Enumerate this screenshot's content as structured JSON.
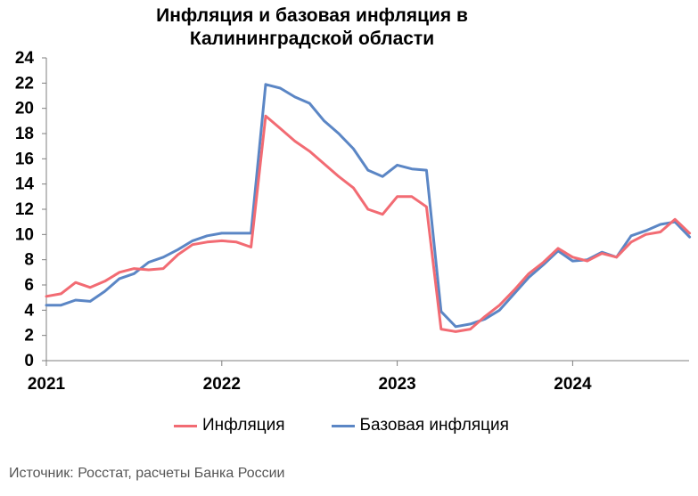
{
  "title_lines": [
    "Инфляция и базовая инфляция в",
    "Калининградской области"
  ],
  "source": "Источник: Росстат, расчеты Банка России",
  "colors": {
    "inflation": "#f26b73",
    "core": "#5b86c5"
  },
  "chart_data": {
    "type": "line",
    "title": "Инфляция и базовая инфляция в Калининградской области",
    "xlabel": "",
    "ylabel": "",
    "ylim": [
      0,
      24
    ],
    "yticks": [
      0,
      2,
      4,
      6,
      8,
      10,
      12,
      14,
      16,
      18,
      20,
      22,
      24
    ],
    "xticks": [
      "2021",
      "2022",
      "2023",
      "2024"
    ],
    "x": [
      "2021-01",
      "2021-02",
      "2021-03",
      "2021-04",
      "2021-05",
      "2021-06",
      "2021-07",
      "2021-08",
      "2021-09",
      "2021-10",
      "2021-11",
      "2021-12",
      "2022-01",
      "2022-02",
      "2022-03",
      "2022-04",
      "2022-05",
      "2022-06",
      "2022-07",
      "2022-08",
      "2022-09",
      "2022-10",
      "2022-11",
      "2022-12",
      "2023-01",
      "2023-02",
      "2023-03",
      "2023-04",
      "2023-05",
      "2023-06",
      "2023-07",
      "2023-08",
      "2023-09",
      "2023-10",
      "2023-11",
      "2023-12",
      "2024-01",
      "2024-02",
      "2024-03",
      "2024-04",
      "2024-05",
      "2024-06",
      "2024-07",
      "2024-08",
      "2024-09"
    ],
    "series": [
      {
        "name": "Инфляция",
        "values": [
          5.1,
          5.3,
          6.2,
          5.8,
          6.3,
          7.0,
          7.3,
          7.2,
          7.3,
          8.4,
          9.2,
          9.4,
          9.5,
          9.4,
          9.0,
          19.4,
          18.4,
          17.4,
          16.6,
          15.6,
          14.6,
          13.7,
          12.0,
          11.6,
          13.0,
          13.0,
          12.2,
          2.5,
          2.3,
          2.5,
          3.5,
          4.4,
          5.6,
          6.9,
          7.8,
          8.9,
          8.2,
          7.9,
          8.5,
          8.2,
          9.4,
          10.0,
          10.2,
          11.2,
          10.1
        ]
      },
      {
        "name": "Базовая инфляция",
        "values": [
          4.4,
          4.4,
          4.8,
          4.7,
          5.5,
          6.5,
          6.9,
          7.8,
          8.2,
          8.8,
          9.5,
          9.9,
          10.1,
          10.1,
          10.1,
          21.9,
          21.6,
          20.9,
          20.4,
          19.0,
          18.0,
          16.8,
          15.1,
          14.6,
          15.5,
          15.2,
          15.1,
          3.9,
          2.7,
          2.9,
          3.3,
          4.0,
          5.3,
          6.6,
          7.6,
          8.7,
          7.9,
          8.0,
          8.6,
          8.2,
          9.9,
          10.3,
          10.8,
          11.0,
          9.8
        ]
      }
    ]
  }
}
